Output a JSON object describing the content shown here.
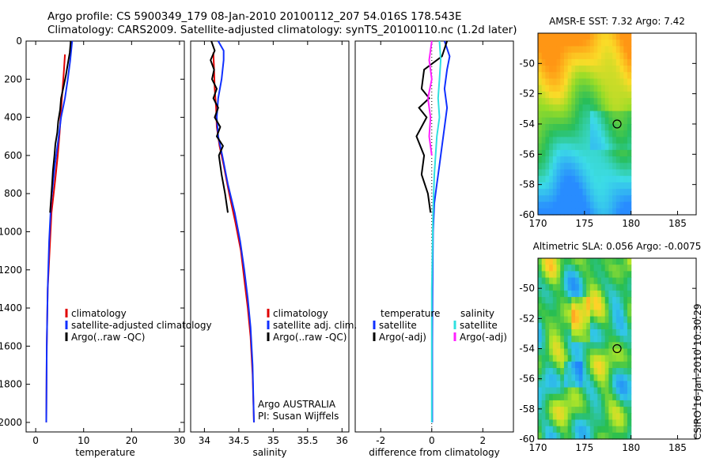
{
  "header": {
    "line1": "Argo profile: CS 5900349_179 08-Jan-2010 20100112_207 54.016S 178.543E",
    "line2": "Climatology: CARS2009. Satellite-adjusted climatology: synTS_20100110.nc (1.2d later)"
  },
  "side_label": "CSIRO 16-Jan-2010 10:30:29",
  "colors": {
    "climatology": "#e00000",
    "satellite": "#1030ff",
    "argo": "#000000",
    "sat_salinity": "#30e0e0",
    "argo_salinity": "#ff20ff"
  },
  "chart_data": [
    {
      "type": "line",
      "id": "temperature",
      "xlabel": "temperature",
      "ylabel": "",
      "xlim": [
        -2,
        31
      ],
      "ylim": [
        2050,
        0
      ],
      "xticks": [
        0,
        10,
        20,
        30
      ],
      "yticks": [
        0,
        200,
        400,
        600,
        800,
        1000,
        1200,
        1400,
        1600,
        1800,
        2000
      ],
      "legend": [
        "climatology",
        "satellite-adjusted climatology",
        "Argo(..raw -QC)"
      ],
      "series": [
        {
          "name": "climatology",
          "color_key": "climatology",
          "x": [
            6.1,
            5.9,
            5.6,
            5.3,
            5.0,
            4.6,
            4.1,
            3.3,
            2.9,
            2.5,
            2.3,
            2.2
          ],
          "y": [
            70,
            150,
            250,
            360,
            480,
            600,
            720,
            900,
            1100,
            1300,
            1600,
            2000
          ]
        },
        {
          "name": "satellite-adjusted climatology",
          "color_key": "satellite",
          "x": [
            7.6,
            7.2,
            6.7,
            6.1,
            5.3,
            4.7,
            4.0,
            3.2,
            2.8,
            2.5,
            2.3,
            2.2
          ],
          "y": [
            0,
            100,
            200,
            300,
            400,
            520,
            650,
            850,
            1050,
            1300,
            1600,
            2000
          ]
        },
        {
          "name": "Argo(..raw -QC)",
          "color_key": "argo",
          "x": [
            7.3,
            7.1,
            6.7,
            6.3,
            5.8,
            5.3,
            5.1,
            4.7,
            4.5,
            4.1,
            3.9,
            3.6,
            3.4,
            3.0
          ],
          "y": [
            0,
            60,
            120,
            180,
            240,
            300,
            360,
            420,
            480,
            540,
            600,
            680,
            760,
            900
          ]
        }
      ]
    },
    {
      "type": "line",
      "id": "salinity",
      "xlabel": "salinity",
      "ylabel": "",
      "xlim": [
        33.8,
        36.1
      ],
      "ylim": [
        2050,
        0
      ],
      "xticks": [
        34,
        34.5,
        35,
        35.5,
        36
      ],
      "yticks": [],
      "legend": [
        "climatology",
        "satellite adj. clim.",
        "Argo(..raw -QC)"
      ],
      "annotation": [
        "Argo AUSTRALIA",
        "PI: Susan Wijffels"
      ],
      "series": [
        {
          "name": "climatology",
          "color_key": "climatology",
          "x": [
            34.13,
            34.14,
            34.15,
            34.17,
            34.18,
            34.22,
            34.28,
            34.36,
            34.45,
            34.53,
            34.58,
            34.63,
            34.67,
            34.7,
            34.72
          ],
          "y": [
            60,
            150,
            250,
            350,
            450,
            550,
            650,
            800,
            950,
            1100,
            1250,
            1400,
            1550,
            1750,
            2000
          ]
        },
        {
          "name": "satellite adj. clim.",
          "color_key": "satellite",
          "x": [
            34.2,
            34.28,
            34.28,
            34.25,
            34.2,
            34.18,
            34.2,
            34.26,
            34.34,
            34.44,
            34.52,
            34.58,
            34.63,
            34.67,
            34.7,
            34.72
          ],
          "y": [
            0,
            50,
            100,
            200,
            300,
            400,
            500,
            600,
            750,
            900,
            1050,
            1200,
            1350,
            1500,
            1700,
            2000
          ]
        },
        {
          "name": "Argo(..raw -QC)",
          "color_key": "argo",
          "x": [
            34.1,
            34.15,
            34.09,
            34.14,
            34.11,
            34.18,
            34.13,
            34.2,
            34.15,
            34.23,
            34.18,
            34.27,
            34.21,
            34.25,
            34.3,
            34.34
          ],
          "y": [
            0,
            50,
            100,
            150,
            200,
            250,
            300,
            350,
            400,
            450,
            500,
            550,
            600,
            700,
            800,
            900
          ]
        }
      ]
    },
    {
      "type": "line",
      "id": "difference",
      "xlabel": "difference from climatology",
      "ylabel": "",
      "xlim": [
        -3,
        3.2
      ],
      "ylim": [
        2050,
        0
      ],
      "xticks": [
        -2,
        0,
        2
      ],
      "yticks": [],
      "legend_left": {
        "title": "temperature",
        "items": [
          "satellite",
          "Argo(-adj)"
        ]
      },
      "legend_right": {
        "title": "salinity",
        "items": [
          "satellite",
          "Argo(-adj)"
        ]
      },
      "series": [
        {
          "name": "temperature satellite",
          "color_key": "satellite",
          "x": [
            0.5,
            0.7,
            0.6,
            0.5,
            0.6,
            0.5,
            0.4,
            0.3,
            0.2,
            0.1,
            0.05,
            0.03,
            0.02,
            0.02
          ],
          "y": [
            0,
            80,
            150,
            250,
            350,
            450,
            550,
            650,
            750,
            850,
            1000,
            1300,
            1600,
            2000
          ]
        },
        {
          "name": "temperature Argo(-adj)",
          "color_key": "argo",
          "x": [
            0.6,
            0.4,
            -0.3,
            -0.4,
            -0.1,
            -0.5,
            -0.2,
            -0.6,
            -0.3,
            -0.4,
            -0.15,
            -0.05
          ],
          "y": [
            0,
            80,
            150,
            250,
            300,
            350,
            400,
            500,
            600,
            700,
            800,
            900
          ]
        },
        {
          "name": "salinity satellite",
          "color_key": "sat_salinity",
          "x": [
            0.3,
            0.35,
            0.3,
            0.25,
            0.3,
            0.2,
            0.1,
            0.05,
            0.0,
            0.0
          ],
          "y": [
            0,
            100,
            200,
            300,
            400,
            500,
            700,
            900,
            1300,
            2000
          ]
        },
        {
          "name": "salinity Argo(-adj)",
          "color_key": "argo_salinity",
          "x": [
            0.0,
            -0.1,
            0.0,
            -0.15,
            -0.05,
            -0.1,
            0.0
          ],
          "y": [
            0,
            100,
            200,
            300,
            400,
            500,
            600
          ]
        }
      ]
    },
    {
      "type": "heatmap",
      "id": "sst_map",
      "title": "AMSR-E SST: 7.32 Argo: 7.42",
      "xlim": [
        170,
        187
      ],
      "ylim": [
        -60,
        -48
      ],
      "xticks": [
        170,
        175,
        180,
        185
      ],
      "yticks": [
        -50,
        -52,
        -54,
        -56,
        -58,
        -60
      ],
      "data_extent_lon": [
        170,
        180
      ],
      "marker": {
        "lon": 178.5,
        "lat": -54.0
      }
    },
    {
      "type": "heatmap",
      "id": "sla_map",
      "title": "Altimetric SLA: 0.056 Argo: -0.0075",
      "xlim": [
        170,
        187
      ],
      "ylim": [
        -60,
        -48
      ],
      "xticks": [
        170,
        175,
        180,
        185
      ],
      "yticks": [
        -50,
        -52,
        -54,
        -56,
        -58,
        -60
      ],
      "data_extent_lon": [
        170,
        180
      ],
      "marker": {
        "lon": 178.5,
        "lat": -54.0
      }
    }
  ]
}
